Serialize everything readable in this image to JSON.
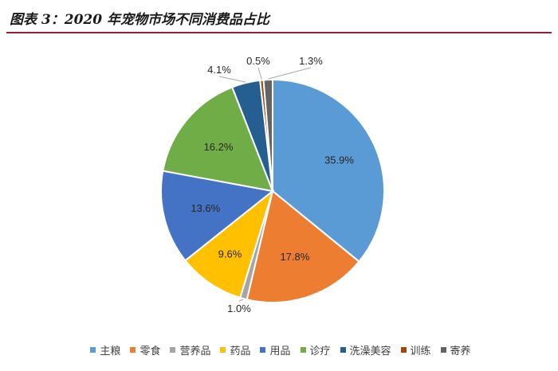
{
  "figure": {
    "title": "图表 3：2020 年宠物市场不同消费品占比"
  },
  "chart_data": {
    "type": "pie",
    "title": "",
    "start_angle_deg": 0,
    "direction": "clockwise",
    "slices": [
      {
        "label": "主粮",
        "value": 35.9,
        "display": "35.9%",
        "color": "#5b9bd5"
      },
      {
        "label": "零食",
        "value": 17.8,
        "display": "17.8%",
        "color": "#ed7d31"
      },
      {
        "label": "营养品",
        "value": 1.0,
        "display": "1.0%",
        "color": "#a5a5a5"
      },
      {
        "label": "药品",
        "value": 9.6,
        "display": "9.6%",
        "color": "#ffc000"
      },
      {
        "label": "用品",
        "value": 13.6,
        "display": "13.6%",
        "color": "#4472c4"
      },
      {
        "label": "诊疗",
        "value": 16.2,
        "display": "16.2%",
        "color": "#70ad47"
      },
      {
        "label": "洗澡美容",
        "value": 4.1,
        "display": "4.1%",
        "color": "#255e91"
      },
      {
        "label": "训练",
        "value": 0.5,
        "display": "0.5%",
        "color": "#9e480e"
      },
      {
        "label": "寄养",
        "value": 1.3,
        "display": "1.3%",
        "color": "#636363"
      }
    ],
    "legend_position": "bottom"
  }
}
